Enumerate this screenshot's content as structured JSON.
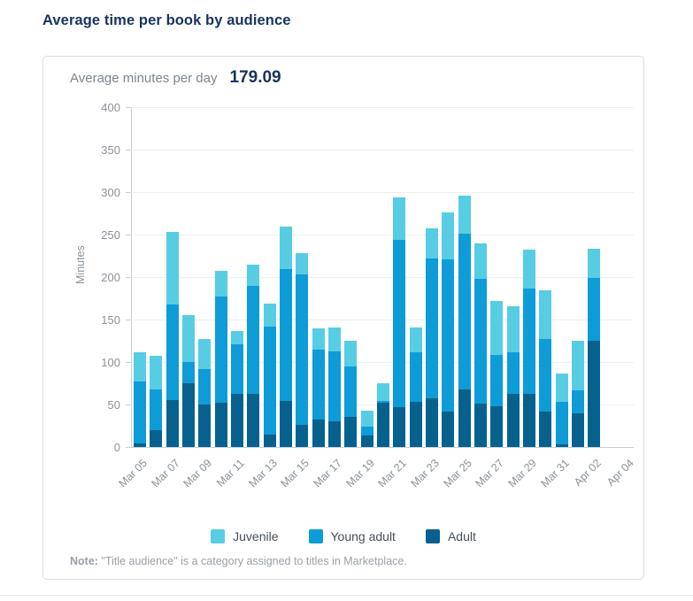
{
  "header": {
    "title": "Average time per book by audience"
  },
  "metric": {
    "label": "Average minutes per day",
    "value": "179.09"
  },
  "note": {
    "label": "Note:",
    "text": " \"Title audience\" is a category assigned to titles in Marketplace."
  },
  "chart_data": {
    "type": "bar",
    "stacked": true,
    "title": "Average time per book by audience",
    "xlabel": "",
    "ylabel": "Minutes",
    "ylim": [
      0,
      400
    ],
    "ytick_step": 50,
    "yticks": [
      0,
      50,
      100,
      150,
      200,
      250,
      300,
      350,
      400
    ],
    "grid": true,
    "legend_position": "bottom-center",
    "total_slots": 31,
    "categories": [
      "Mar 05",
      "Mar 06",
      "Mar 07",
      "Mar 08",
      "Mar 09",
      "Mar 10",
      "Mar 11",
      "Mar 12",
      "Mar 13",
      "Mar 14",
      "Mar 15",
      "Mar 16",
      "Mar 17",
      "Mar 18",
      "Mar 19",
      "Mar 20",
      "Mar 21",
      "Mar 22",
      "Mar 23",
      "Mar 24",
      "Mar 25",
      "Mar 26",
      "Mar 27",
      "Mar 28",
      "Mar 29",
      "Mar 30",
      "Mar 31",
      "Apr 01",
      "Apr 02"
    ],
    "x_tick_labels": [
      "Mar 05",
      "Mar 07",
      "Mar 09",
      "Mar 11",
      "Mar 13",
      "Mar 15",
      "Mar 17",
      "Mar 19",
      "Mar 21",
      "Mar 23",
      "Mar 25",
      "Mar 27",
      "Mar 29",
      "Mar 31",
      "Apr 02",
      "Apr 04"
    ],
    "x_tick_slots": [
      0,
      2,
      4,
      6,
      8,
      10,
      12,
      14,
      16,
      18,
      20,
      22,
      24,
      26,
      28,
      30
    ],
    "series": [
      {
        "name": "Adult",
        "color": "#06618F",
        "values": [
          4,
          20,
          55,
          75,
          50,
          52,
          62,
          63,
          15,
          54,
          26,
          32,
          30,
          35,
          14,
          52,
          47,
          53,
          57,
          42,
          68,
          51,
          48,
          63,
          63,
          42,
          3,
          40,
          125
        ]
      },
      {
        "name": "Young adult",
        "color": "#0D9CD7",
        "values": [
          73,
          48,
          113,
          25,
          42,
          125,
          59,
          127,
          127,
          155,
          177,
          83,
          82,
          60,
          10,
          2,
          197,
          58,
          165,
          179,
          183,
          147,
          60,
          48,
          123,
          85,
          50,
          27,
          74
        ]
      },
      {
        "name": "Juvenile",
        "color": "#57CDE4",
        "values": [
          34,
          39,
          85,
          55,
          35,
          30,
          15,
          25,
          27,
          50,
          25,
          25,
          29,
          30,
          19,
          21,
          50,
          30,
          35,
          55,
          45,
          42,
          64,
          55,
          46,
          57,
          34,
          58,
          34
        ]
      }
    ],
    "legend_order": [
      "Juvenile",
      "Young adult",
      "Adult"
    ]
  }
}
